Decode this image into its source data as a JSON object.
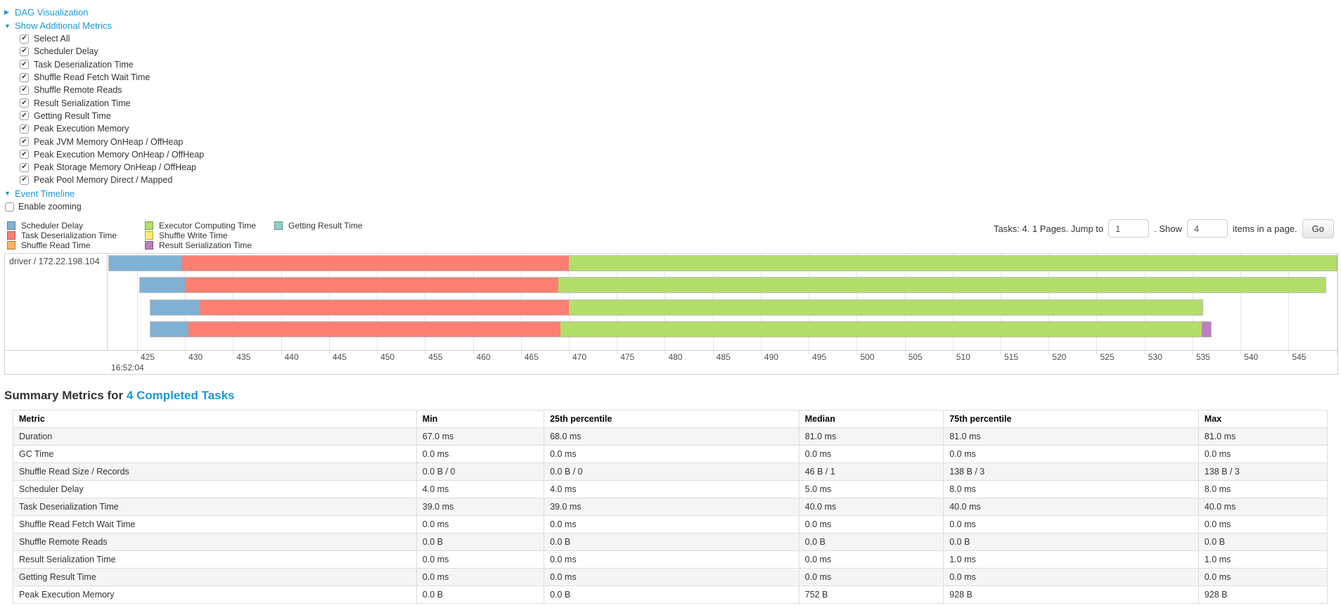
{
  "sections": {
    "dag": {
      "label": "DAG Visualization",
      "state": "collapsed",
      "arrow": "▶"
    },
    "metrics": {
      "label": "Show Additional Metrics",
      "state": "expanded",
      "arrow": "▼"
    },
    "timeline": {
      "label": "Event Timeline",
      "state": "expanded",
      "arrow": "▼"
    }
  },
  "metrics_checkboxes": [
    {
      "label": "Select All",
      "checked": true
    },
    {
      "label": "Scheduler Delay",
      "checked": true
    },
    {
      "label": "Task Deserialization Time",
      "checked": true
    },
    {
      "label": "Shuffle Read Fetch Wait Time",
      "checked": true
    },
    {
      "label": "Shuffle Remote Reads",
      "checked": true
    },
    {
      "label": "Result Serialization Time",
      "checked": true
    },
    {
      "label": "Getting Result Time",
      "checked": true
    },
    {
      "label": "Peak Execution Memory",
      "checked": true
    },
    {
      "label": "Peak JVM Memory OnHeap / OffHeap",
      "checked": true
    },
    {
      "label": "Peak Execution Memory OnHeap / OffHeap",
      "checked": true
    },
    {
      "label": "Peak Storage Memory OnHeap / OffHeap",
      "checked": true
    },
    {
      "label": "Peak Pool Memory Direct / Mapped",
      "checked": true
    }
  ],
  "enable_zooming": {
    "label": "Enable zooming",
    "checked": false
  },
  "pagination": {
    "tasks_text": "Tasks: 4. 1 Pages. Jump to",
    "jump_value": "1",
    "show_text": ". Show",
    "show_value": "4",
    "suffix_text": "items in a page.",
    "go_label": "Go"
  },
  "chart_data": {
    "type": "timeline",
    "group_label": "driver / 172.22.198.104",
    "colors": {
      "scheduler_delay": {
        "fill": "#80B1D3"
      },
      "task_deserialization": {
        "fill": "#FB8072"
      },
      "shuffle_read": {
        "fill": "#FDB462"
      },
      "executor_computing": {
        "fill": "#B3DE69"
      },
      "shuffle_write": {
        "fill": "#FFED6F"
      },
      "result_serialization": {
        "fill": "#BC80BD"
      },
      "getting_result": {
        "fill": "#8DD3C7"
      }
    },
    "legend_columns": [
      [
        {
          "key": "scheduler_delay",
          "label": "Scheduler Delay"
        },
        {
          "key": "task_deserialization",
          "label": "Task Deserialization Time"
        },
        {
          "key": "shuffle_read",
          "label": "Shuffle Read Time"
        }
      ],
      [
        {
          "key": "executor_computing",
          "label": "Executor Computing Time"
        },
        {
          "key": "shuffle_write",
          "label": "Shuffle Write Time"
        },
        {
          "key": "result_serialization",
          "label": "Result Serialization Time"
        }
      ],
      [
        {
          "key": "getting_result",
          "label": "Getting Result Time"
        }
      ]
    ],
    "axis": {
      "unit": "ms",
      "window_start_ms": 422.0,
      "window_end_ms": 550.1,
      "tick_start": 425,
      "tick_end": 550,
      "tick_step": 5,
      "major_label": "16:52:04"
    },
    "tasks": [
      {
        "segments": [
          {
            "type": "scheduler_delay",
            "start": 422.0,
            "end": 429.6
          },
          {
            "type": "task_deserialization",
            "start": 429.6,
            "end": 470.0
          },
          {
            "type": "executor_computing",
            "start": 470.0,
            "end": 550.1
          }
        ]
      },
      {
        "segments": [
          {
            "type": "scheduler_delay",
            "start": 425.2,
            "end": 429.9
          },
          {
            "type": "task_deserialization",
            "start": 429.9,
            "end": 468.9
          },
          {
            "type": "executor_computing",
            "start": 468.9,
            "end": 548.9
          }
        ]
      },
      {
        "segments": [
          {
            "type": "scheduler_delay",
            "start": 426.3,
            "end": 431.4
          },
          {
            "type": "task_deserialization",
            "start": 431.4,
            "end": 470.0
          },
          {
            "type": "executor_computing",
            "start": 470.0,
            "end": 536.1
          }
        ]
      },
      {
        "segments": [
          {
            "type": "scheduler_delay",
            "start": 426.3,
            "end": 430.3
          },
          {
            "type": "task_deserialization",
            "start": 430.3,
            "end": 469.1
          },
          {
            "type": "executor_computing",
            "start": 469.1,
            "end": 536.0
          },
          {
            "type": "result_serialization",
            "start": 536.0,
            "end": 537.0
          }
        ]
      }
    ]
  },
  "summary": {
    "title_prefix": "Summary Metrics for ",
    "title_link": "4 Completed Tasks",
    "table": {
      "headers": [
        "Metric",
        "Min",
        "25th percentile",
        "Median",
        "75th percentile",
        "Max"
      ],
      "col_widths_pct": [
        30.7,
        9.7,
        19.4,
        11.0,
        19.4,
        9.8
      ],
      "rows": [
        [
          "Duration",
          "67.0 ms",
          "68.0 ms",
          "81.0 ms",
          "81.0 ms",
          "81.0 ms"
        ],
        [
          "GC Time",
          "0.0 ms",
          "0.0 ms",
          "0.0 ms",
          "0.0 ms",
          "0.0 ms"
        ],
        [
          "Shuffle Read Size / Records",
          "0.0 B / 0",
          "0.0 B / 0",
          "46 B / 1",
          "138 B / 3",
          "138 B / 3"
        ],
        [
          "Scheduler Delay",
          "4.0 ms",
          "4.0 ms",
          "5.0 ms",
          "8.0 ms",
          "8.0 ms"
        ],
        [
          "Task Deserialization Time",
          "39.0 ms",
          "39.0 ms",
          "40.0 ms",
          "40.0 ms",
          "40.0 ms"
        ],
        [
          "Shuffle Read Fetch Wait Time",
          "0.0 ms",
          "0.0 ms",
          "0.0 ms",
          "0.0 ms",
          "0.0 ms"
        ],
        [
          "Shuffle Remote Reads",
          "0.0 B",
          "0.0 B",
          "0.0 B",
          "0.0 B",
          "0.0 B"
        ],
        [
          "Result Serialization Time",
          "0.0 ms",
          "0.0 ms",
          "0.0 ms",
          "1.0 ms",
          "1.0 ms"
        ],
        [
          "Getting Result Time",
          "0.0 ms",
          "0.0 ms",
          "0.0 ms",
          "0.0 ms",
          "0.0 ms"
        ],
        [
          "Peak Execution Memory",
          "0.0 B",
          "0.0 B",
          "752 B",
          "928 B",
          "928 B"
        ]
      ]
    }
  }
}
